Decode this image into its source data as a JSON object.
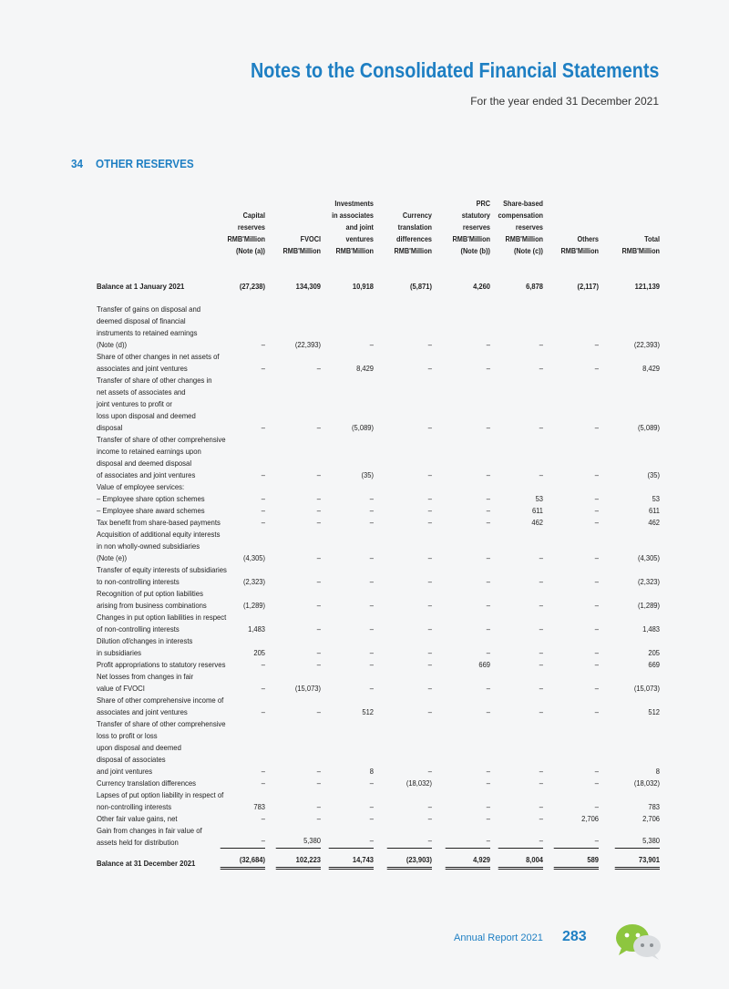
{
  "header": {
    "title": "Notes to the Consolidated Financial Statements",
    "subtitle": "For the year ended 31 December 2021"
  },
  "section": {
    "number": "34",
    "title": "OTHER RESERVES"
  },
  "columns": [
    "Capital\nreserves\nRMB'Million\n(Note (a))",
    "FVOCI\nRMB'Million\n ",
    "Investments\nin associates\nand joint\nventures\nRMB'Million\n ",
    "Currency\ntranslation\ndifferences\nRMB'Million\n ",
    "PRC\nstatutory\nreserves\nRMB'Million\n(Note (b))",
    "Share-based\ncompensation\nreserves\nRMB'Million\n(Note (c))",
    "Others\nRMB'Million\n ",
    "Total\nRMB'Million\n "
  ],
  "rows": [
    {
      "label": "Balance at 1 January 2021",
      "values": [
        "(27,238)",
        "134,309",
        "10,918",
        "(5,871)",
        "4,260",
        "6,878",
        "(2,117)",
        "121,139"
      ],
      "bold": true,
      "gap": 0
    },
    {
      "label": "Transfer of gains on disposal and\n   deemed disposal of financial\n   instruments to retained earnings\n   (Note (d))",
      "values": [
        "–",
        "(22,393)",
        "–",
        "–",
        "–",
        "–",
        "–",
        "(22,393)"
      ],
      "gap": 12
    },
    {
      "label": "Share of other changes in net assets of\n   associates and joint ventures",
      "values": [
        "–",
        "–",
        "8,429",
        "–",
        "–",
        "–",
        "–",
        "8,429"
      ],
      "gap": 0
    },
    {
      "label": "Transfer of share of other changes in\n   net assets of associates and\n   joint ventures to profit or\n   loss upon disposal and deemed\n   disposal",
      "values": [
        "–",
        "–",
        "(5,089)",
        "–",
        "–",
        "–",
        "–",
        "(5,089)"
      ],
      "gap": 0
    },
    {
      "label": "Transfer of share of other comprehensive\n   income to retained earnings upon\n   disposal and deemed disposal\n   of associates and joint ventures",
      "values": [
        "–",
        "–",
        "(35)",
        "–",
        "–",
        "–",
        "–",
        "(35)"
      ],
      "gap": 0
    },
    {
      "label": "Value of employee services:",
      "values": [
        "",
        "",
        "",
        "",
        "",
        "",
        "",
        ""
      ],
      "gap": 0
    },
    {
      "label": "   – Employee share option schemes",
      "values": [
        "–",
        "–",
        "–",
        "–",
        "–",
        "53",
        "–",
        "53"
      ],
      "gap": 0
    },
    {
      "label": "   – Employee share award schemes",
      "values": [
        "–",
        "–",
        "–",
        "–",
        "–",
        "611",
        "–",
        "611"
      ],
      "gap": 0
    },
    {
      "label": "Tax benefit from share-based payments",
      "values": [
        "–",
        "–",
        "–",
        "–",
        "–",
        "462",
        "–",
        "462"
      ],
      "gap": 0
    },
    {
      "label": "Acquisition of additional equity interests\n   in non wholly-owned subsidiaries\n   (Note (e))",
      "values": [
        "(4,305)",
        "–",
        "–",
        "–",
        "–",
        "–",
        "–",
        "(4,305)"
      ],
      "gap": 0
    },
    {
      "label": "Transfer of equity interests of subsidiaries\n   to non-controlling interests",
      "values": [
        "(2,323)",
        "–",
        "–",
        "–",
        "–",
        "–",
        "–",
        "(2,323)"
      ],
      "gap": 0
    },
    {
      "label": "Recognition of put option liabilities\n   arising from business combinations",
      "values": [
        "(1,289)",
        "–",
        "–",
        "–",
        "–",
        "–",
        "–",
        "(1,289)"
      ],
      "gap": 0
    },
    {
      "label": "Changes in put option liabilities in respect\n   of non-controlling interests",
      "values": [
        "1,483",
        "–",
        "–",
        "–",
        "–",
        "–",
        "–",
        "1,483"
      ],
      "gap": 0
    },
    {
      "label": "Dilution of/changes in interests\n   in subsidiaries",
      "values": [
        "205",
        "–",
        "–",
        "–",
        "–",
        "–",
        "–",
        "205"
      ],
      "gap": 0
    },
    {
      "label": "Profit appropriations to statutory reserves",
      "values": [
        "–",
        "–",
        "–",
        "–",
        "669",
        "–",
        "–",
        "669"
      ],
      "gap": 0
    },
    {
      "label": "Net losses from changes in fair\n   value of FVOCI",
      "values": [
        "–",
        "(15,073)",
        "–",
        "–",
        "–",
        "–",
        "–",
        "(15,073)"
      ],
      "gap": 0
    },
    {
      "label": "Share of other comprehensive income of\n   associates and joint ventures",
      "values": [
        "–",
        "–",
        "512",
        "–",
        "–",
        "–",
        "–",
        "512"
      ],
      "gap": 0
    },
    {
      "label": "Transfer of share of other comprehensive\n   loss to profit or loss\n   upon disposal and deemed\n   disposal of associates\n   and joint ventures",
      "values": [
        "–",
        "–",
        "8",
        "–",
        "–",
        "–",
        "–",
        "8"
      ],
      "gap": 0
    },
    {
      "label": "Currency translation differences",
      "values": [
        "–",
        "–",
        "–",
        "(18,032)",
        "–",
        "–",
        "–",
        "(18,032)"
      ],
      "gap": 0
    },
    {
      "label": "Lapses of put option liability in respect of\n   non-controlling interests",
      "values": [
        "783",
        "–",
        "–",
        "–",
        "–",
        "–",
        "–",
        "783"
      ],
      "gap": 0
    },
    {
      "label": "Other fair value gains, net",
      "values": [
        "–",
        "–",
        "–",
        "–",
        "–",
        "–",
        "2,706",
        "2,706"
      ],
      "gap": 0
    },
    {
      "label": "Gain from changes in fair value of\n   assets held for distribution",
      "values": [
        "–",
        "5,380",
        "–",
        "–",
        "–",
        "–",
        "–",
        "5,380"
      ],
      "gap": 0,
      "underline": true
    },
    {
      "label": "Balance at 31 December 2021",
      "values": [
        "(32,684)",
        "102,223",
        "14,743",
        "(23,903)",
        "4,929",
        "8,004",
        "589",
        "73,901"
      ],
      "bold": true,
      "gap": 10,
      "double": true
    }
  ],
  "footer": {
    "label": "Annual Report 2021",
    "page": "283"
  },
  "colors": {
    "accent": "#1e7fc3",
    "icon_green": "#8dc63f"
  },
  "icons": [
    "wechat-icon"
  ]
}
